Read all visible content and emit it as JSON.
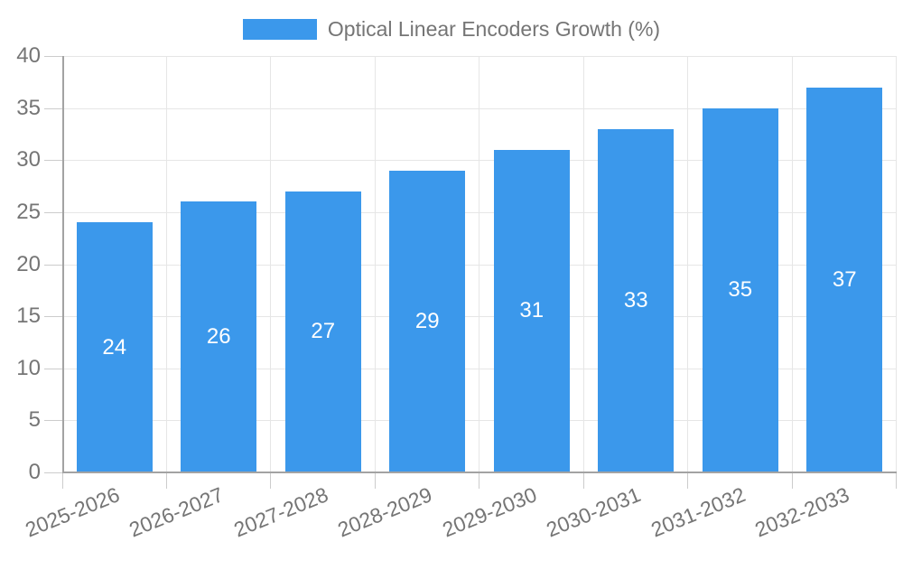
{
  "legend": {
    "swatch_color": "#3b98eb"
  },
  "chart_data": {
    "type": "bar",
    "title": "",
    "xlabel": "",
    "ylabel": "",
    "categories": [
      "2025-2026",
      "2026-2027",
      "2027-2028",
      "2028-2029",
      "2029-2030",
      "2030-2031",
      "2031-2032",
      "2032-2033"
    ],
    "series": [
      {
        "name": "Optical Linear Encoders Growth (%)",
        "values": [
          24,
          26,
          27,
          29,
          31,
          33,
          35,
          37
        ]
      }
    ],
    "value_labels_shown": true,
    "ylim": [
      0,
      40
    ],
    "yticks": [
      0,
      5,
      10,
      15,
      20,
      25,
      30,
      35,
      40
    ],
    "grid": true,
    "legend_position": "top-center",
    "bar_color": "#3b98eb",
    "value_label_color": "#ffffff",
    "axis_text_color": "#757575",
    "gridline_color": "#e6e6e6",
    "axis_line_color": "#a3a3a3"
  }
}
